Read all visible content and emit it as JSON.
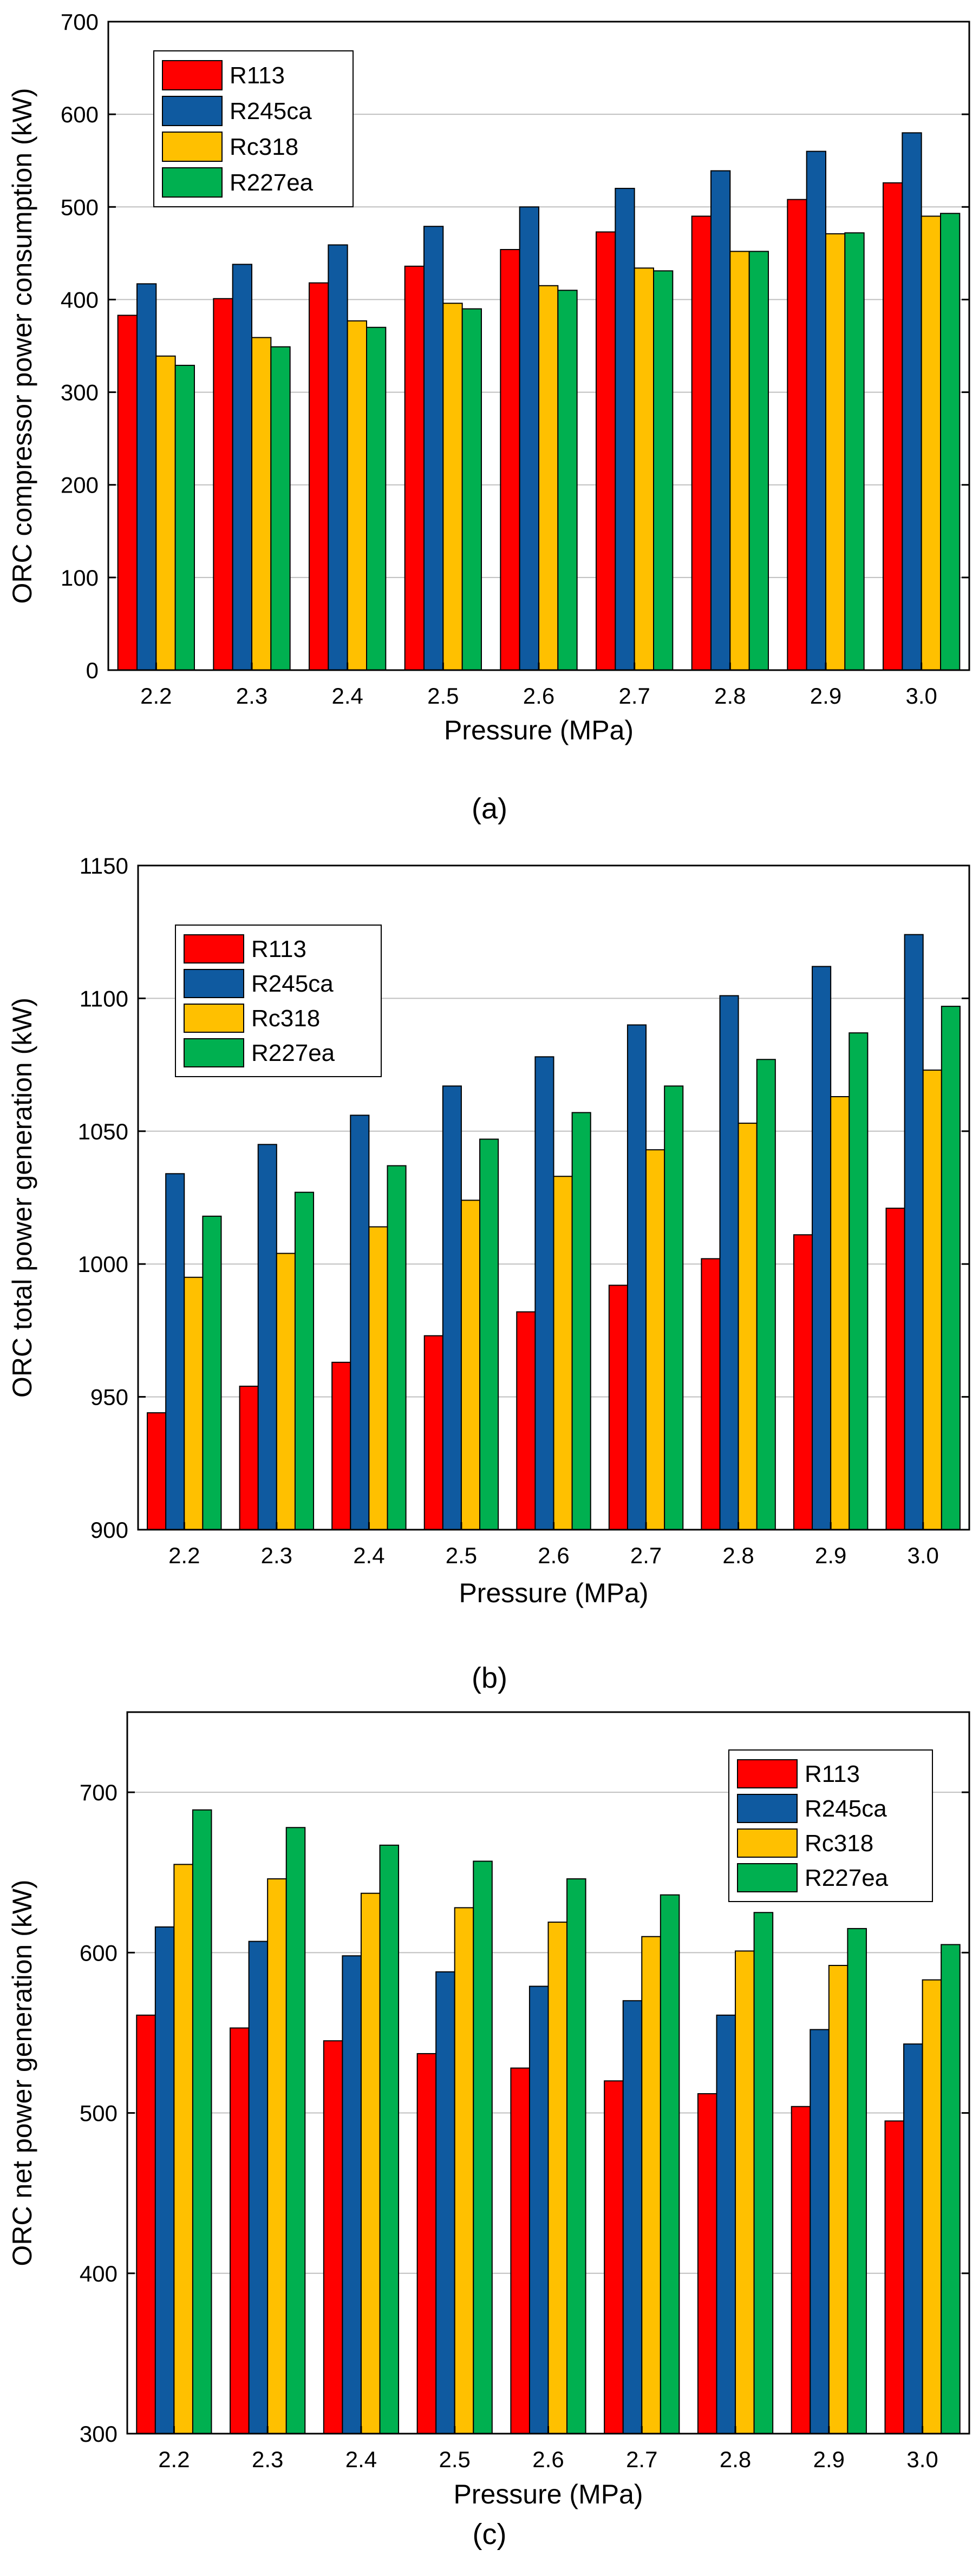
{
  "colors": {
    "R113": "#ff0000",
    "R245ca": "#0f5aa0",
    "Rc318": "#ffc000",
    "R227ea": "#00b050",
    "grid": "#bfbfbf",
    "axis": "#000000",
    "bar_edge": "#000000"
  },
  "chart_data": [
    {
      "type": "bar",
      "panel_label": "(a)",
      "title": "",
      "xlabel": "Pressure (MPa)",
      "ylabel": "ORC compressor power consumption (kW)",
      "ylim": [
        0,
        700
      ],
      "yticks": [
        "0",
        "100",
        "200",
        "300",
        "400",
        "500",
        "600",
        "700"
      ],
      "ytick_values": [
        0,
        100,
        200,
        300,
        400,
        500,
        600,
        700
      ],
      "grid": true,
      "legend_position": "top-left",
      "categories": [
        "2.2",
        "2.3",
        "2.4",
        "2.5",
        "2.6",
        "2.7",
        "2.8",
        "2.9",
        "3.0"
      ],
      "series": [
        {
          "name": "R113",
          "values": [
            383,
            401,
            418,
            436,
            454,
            473,
            490,
            508,
            526
          ]
        },
        {
          "name": "R245ca",
          "values": [
            417,
            438,
            459,
            479,
            500,
            520,
            539,
            560,
            580
          ]
        },
        {
          "name": "Rc318",
          "values": [
            339,
            359,
            377,
            396,
            415,
            434,
            452,
            471,
            490
          ]
        },
        {
          "name": "R227ea",
          "values": [
            329,
            349,
            370,
            390,
            410,
            431,
            452,
            472,
            493
          ]
        }
      ]
    },
    {
      "type": "bar",
      "panel_label": "(b)",
      "title": "",
      "xlabel": "Pressure (MPa)",
      "ylabel": "ORC total power generation (kW)",
      "ylim": [
        900,
        1150
      ],
      "yticks": [
        "900",
        "950",
        "1000",
        "1050",
        "1100",
        "1150"
      ],
      "ytick_values": [
        900,
        950,
        1000,
        1050,
        1100,
        1150
      ],
      "grid": true,
      "legend_position": "top-left",
      "categories": [
        "2.2",
        "2.3",
        "2.4",
        "2.5",
        "2.6",
        "2.7",
        "2.8",
        "2.9",
        "3.0"
      ],
      "series": [
        {
          "name": "R113",
          "values": [
            944,
            954,
            963,
            973,
            982,
            992,
            1002,
            1011,
            1021
          ]
        },
        {
          "name": "R245ca",
          "values": [
            1034,
            1045,
            1056,
            1067,
            1078,
            1090,
            1101,
            1112,
            1124
          ]
        },
        {
          "name": "Rc318",
          "values": [
            995,
            1004,
            1014,
            1024,
            1033,
            1043,
            1053,
            1063,
            1073
          ]
        },
        {
          "name": "R227ea",
          "values": [
            1018,
            1027,
            1037,
            1047,
            1057,
            1067,
            1077,
            1087,
            1097
          ]
        }
      ]
    },
    {
      "type": "bar",
      "panel_label": "(c)",
      "title": "",
      "xlabel": "Pressure (MPa)",
      "ylabel": "ORC net power generation (kW)",
      "ylim": [
        300,
        750
      ],
      "yticks": [
        "300",
        "400",
        "500",
        "600",
        "700"
      ],
      "ytick_values": [
        300,
        400,
        500,
        600,
        700
      ],
      "grid": true,
      "legend_position": "top-right",
      "categories": [
        "2.2",
        "2.3",
        "2.4",
        "2.5",
        "2.6",
        "2.7",
        "2.8",
        "2.9",
        "3.0"
      ],
      "series": [
        {
          "name": "R113",
          "values": [
            561,
            553,
            545,
            537,
            528,
            520,
            512,
            504,
            495
          ]
        },
        {
          "name": "R245ca",
          "values": [
            616,
            607,
            598,
            588,
            579,
            570,
            561,
            552,
            543
          ]
        },
        {
          "name": "Rc318",
          "values": [
            655,
            646,
            637,
            628,
            619,
            610,
            601,
            592,
            583
          ]
        },
        {
          "name": "R227ea",
          "values": [
            689,
            678,
            667,
            657,
            646,
            636,
            625,
            615,
            605
          ]
        }
      ]
    }
  ]
}
